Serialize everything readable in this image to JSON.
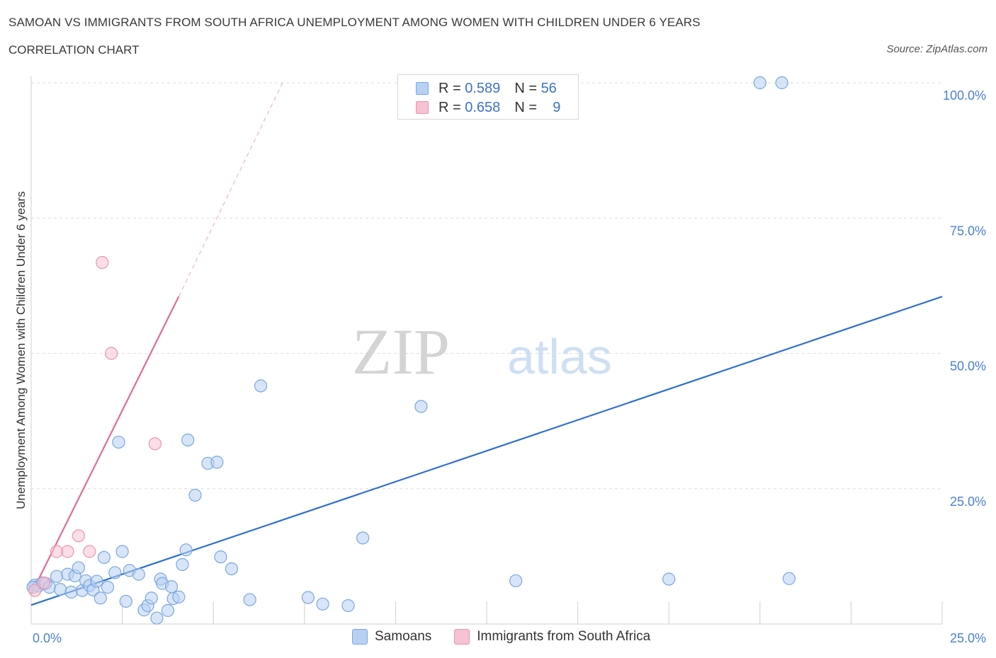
{
  "header": {
    "title": "SAMOAN VS IMMIGRANTS FROM SOUTH AFRICA UNEMPLOYMENT AMONG WOMEN WITH CHILDREN UNDER 6 YEARS",
    "subtitle": "CORRELATION CHART",
    "source": "Source: ZipAtlas.com"
  },
  "watermark": {
    "zip": "ZIP",
    "atlas": "atlas"
  },
  "legend": {
    "samoans": {
      "r_label": "R =",
      "r_value": "0.589",
      "n_label": "N =",
      "n_value": "56"
    },
    "immigrants": {
      "r_label": "R =",
      "r_value": "0.658",
      "n_label": "N =",
      "n_value": "9"
    }
  },
  "bottom_legend": {
    "samoans": "Samoans",
    "immigrants": "Immigrants from South Africa"
  },
  "colors": {
    "samoans_fill": "#b8d0f2",
    "samoans_stroke": "#7aa6e0",
    "samoans_line": "#2f6fd0",
    "immigrants_fill": "#f7c2d2",
    "immigrants_stroke": "#eb93b0",
    "immigrants_line": "#e26a97"
  },
  "chart_data": {
    "type": "scatter",
    "title": "SAMOAN VS IMMIGRANTS FROM SOUTH AFRICA UNEMPLOYMENT AMONG WOMEN WITH CHILDREN UNDER 6 YEARS",
    "xlabel": "",
    "ylabel": "Unemployment Among Women with Children Under 6 years",
    "xlim": [
      0,
      25
    ],
    "ylim": [
      0,
      100
    ],
    "x_tick_labels": [
      "0.0%",
      "25.0%"
    ],
    "y_tick_values": [
      25,
      50,
      75,
      100
    ],
    "y_tick_labels": [
      "25.0%",
      "50.0%",
      "75.0%",
      "100.0%"
    ],
    "series": [
      {
        "name": "Samoans",
        "r": 0.589,
        "n": 56,
        "trend": {
          "x": [
            0,
            25
          ],
          "y": [
            3.5,
            60.5
          ]
        },
        "points": [
          [
            0.1,
            7.2
          ],
          [
            0.2,
            7.0
          ],
          [
            0.3,
            7.6
          ],
          [
            0.4,
            7.5
          ],
          [
            0.5,
            6.8
          ],
          [
            0.7,
            8.8
          ],
          [
            0.8,
            6.4
          ],
          [
            1.0,
            9.2
          ],
          [
            1.1,
            5.9
          ],
          [
            1.2,
            8.9
          ],
          [
            1.3,
            10.4
          ],
          [
            1.4,
            6.2
          ],
          [
            1.5,
            8.0
          ],
          [
            1.6,
            7.1
          ],
          [
            1.7,
            6.3
          ],
          [
            1.8,
            7.9
          ],
          [
            1.9,
            4.8
          ],
          [
            2.0,
            12.3
          ],
          [
            2.1,
            6.8
          ],
          [
            2.3,
            9.5
          ],
          [
            2.4,
            33.6
          ],
          [
            2.5,
            13.4
          ],
          [
            2.6,
            4.2
          ],
          [
            2.7,
            9.9
          ],
          [
            2.95,
            9.2
          ],
          [
            3.1,
            2.6
          ],
          [
            3.2,
            3.4
          ],
          [
            3.3,
            4.8
          ],
          [
            3.45,
            1.1
          ],
          [
            3.55,
            8.3
          ],
          [
            3.6,
            7.5
          ],
          [
            3.75,
            2.5
          ],
          [
            3.85,
            6.9
          ],
          [
            3.9,
            4.7
          ],
          [
            4.05,
            5.0
          ],
          [
            4.15,
            11.0
          ],
          [
            4.25,
            13.7
          ],
          [
            4.3,
            34.0
          ],
          [
            4.5,
            23.8
          ],
          [
            4.85,
            29.7
          ],
          [
            5.1,
            29.9
          ],
          [
            5.2,
            12.4
          ],
          [
            5.5,
            10.2
          ],
          [
            6.0,
            4.5
          ],
          [
            6.3,
            44.0
          ],
          [
            7.6,
            4.9
          ],
          [
            8.0,
            3.7
          ],
          [
            8.7,
            3.4
          ],
          [
            9.1,
            15.9
          ],
          [
            10.7,
            40.2
          ],
          [
            13.3,
            8.0
          ],
          [
            17.5,
            8.3
          ],
          [
            20.0,
            100.0
          ],
          [
            20.6,
            100.0
          ],
          [
            20.8,
            8.4
          ],
          [
            0.05,
            6.8
          ]
        ]
      },
      {
        "name": "Immigrants from South Africa",
        "r": 0.658,
        "n": 9,
        "trend": {
          "x": [
            0,
            4.05
          ],
          "y": [
            5.5,
            60.5
          ]
        },
        "trend_extended": {
          "x": [
            4.05,
            6.9
          ],
          "y": [
            60.5,
            100.0
          ]
        },
        "points": [
          [
            0.1,
            6.2
          ],
          [
            0.35,
            7.6
          ],
          [
            0.7,
            13.4
          ],
          [
            1.0,
            13.4
          ],
          [
            1.3,
            16.3
          ],
          [
            1.6,
            13.4
          ],
          [
            1.95,
            66.8
          ],
          [
            2.2,
            50.0
          ],
          [
            3.4,
            33.3
          ]
        ]
      }
    ]
  }
}
